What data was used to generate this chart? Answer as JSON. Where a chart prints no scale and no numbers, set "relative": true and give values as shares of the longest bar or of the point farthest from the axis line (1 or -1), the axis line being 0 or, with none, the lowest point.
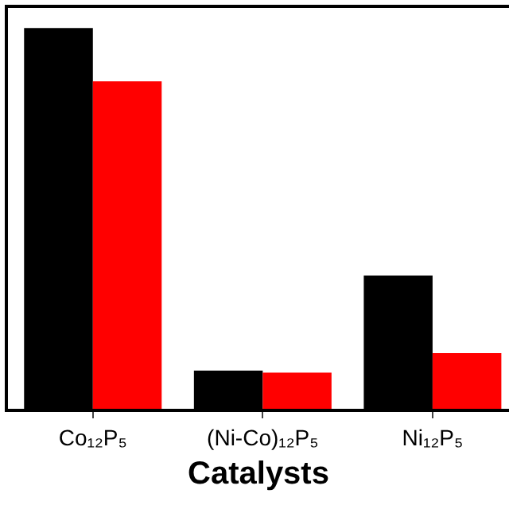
{
  "chart_data": {
    "type": "bar",
    "relative": true,
    "xlabel": "Catalysts",
    "categories": [
      "Co₁₂P₅",
      "(Ni-Co)₁₂P₅",
      "Ni₁₂P₅"
    ],
    "series": [
      {
        "color": "#000000",
        "values": [
          1,
          0.1,
          0.35
        ]
      },
      {
        "color": "#ff0000",
        "values": [
          0.86,
          0.095,
          0.146
        ]
      }
    ]
  }
}
